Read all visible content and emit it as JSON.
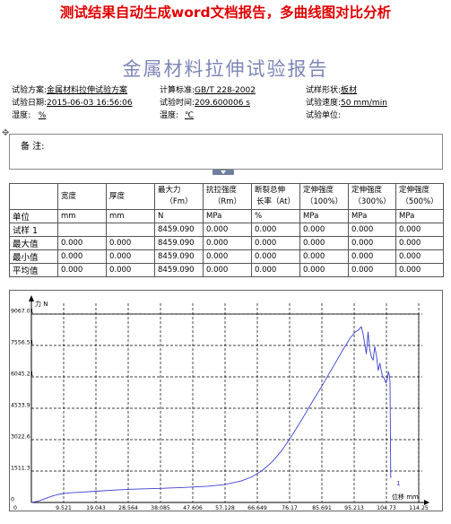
{
  "banner": "测试结果自动生成word文档报告，多曲线图对比分析",
  "report_title": "金属材料拉伸试验报告",
  "info": {
    "row1": [
      {
        "label": "试验方案:",
        "value": "金属材料拉伸试验方案"
      },
      {
        "label": "计算标准:",
        "value": "GB/T 228-2002"
      },
      {
        "label": "试样形状:",
        "value": "板材"
      }
    ],
    "row2": [
      {
        "label": "试验日期:",
        "value": "2015-06-03 16:56:06"
      },
      {
        "label": "试验时间:",
        "value": "209.600006 s"
      },
      {
        "label": "试验速度:",
        "value": "50 mm/min"
      }
    ],
    "row3": [
      {
        "label": "湿度:",
        "value": "%"
      },
      {
        "label": "温度:",
        "value": "℃"
      },
      {
        "label": "试验单位:",
        "value": ""
      }
    ]
  },
  "remark_label": "备  注:",
  "table": {
    "headers": [
      "",
      "宽度",
      "厚度",
      "最大力\n（Fm）",
      "抗拉强度\n（Rm）",
      "断裂总伸\n长率（At）",
      "定伸强度\n（100%）",
      "定伸强度\n（300%）",
      "定伸强度\n（500%）"
    ],
    "rows": [
      [
        "单位",
        "mm",
        "mm",
        "N",
        "MPa",
        "%",
        "MPa",
        "MPa",
        "MPa"
      ],
      [
        "试样 1",
        "",
        "",
        "8459.090",
        "0.000",
        "0.000",
        "0.000",
        "0.000",
        "0.000"
      ],
      [
        "最大值",
        "0.000",
        "0.000",
        "8459.090",
        "0.000",
        "0.000",
        "0.000",
        "0.000",
        "0.000"
      ],
      [
        "最小值",
        "0.000",
        "0.000",
        "8459.090",
        "0.000",
        "0.000",
        "0.000",
        "0.000",
        "0.000"
      ],
      [
        "平均值",
        "0.000",
        "0.000",
        "8459.090",
        "0.000",
        "0.000",
        "0.000",
        "0.000",
        "0.000"
      ]
    ]
  },
  "chart_data": {
    "type": "line",
    "ylabel": "力 N",
    "xlabel": "位移 mm",
    "xlim": [
      0,
      114.25
    ],
    "ylim": [
      0,
      9067.01
    ],
    "x_ticks": [
      "0",
      "9.521",
      "19.043",
      "28.564",
      "38.085",
      "47.606",
      "57.128",
      "66.649",
      "76.17",
      "85.691",
      "95.213",
      "104.73",
      "114.25"
    ],
    "y_ticks": [
      "0",
      "1511.3",
      "3022.6",
      "4533.9",
      "6045.21",
      "7556.51",
      "9067.01"
    ],
    "grid": true,
    "series": [
      {
        "annotation": "1",
        "color": "#3a3fcf",
        "x": [
          0,
          2,
          4,
          6,
          8,
          10,
          12,
          15,
          19,
          25,
          30,
          38,
          45,
          52,
          57,
          62,
          65,
          68,
          71,
          74,
          77,
          80,
          83,
          86,
          89,
          92,
          94,
          95.5,
          96.5,
          97.3,
          97.8,
          98.3,
          98.8,
          99.3,
          99.8,
          100.3,
          100.8,
          101.3,
          101.8,
          102.3,
          102.8,
          103.2,
          103.6,
          104.0,
          104.3,
          104.6,
          105.0,
          105.3,
          105.6,
          105.8,
          106.0,
          106.1
        ],
        "y": [
          0,
          60,
          180,
          300,
          390,
          440,
          470,
          500,
          540,
          600,
          640,
          680,
          720,
          780,
          860,
          1040,
          1230,
          1530,
          1950,
          2530,
          3260,
          4050,
          4880,
          5690,
          6530,
          7380,
          7900,
          8200,
          8300,
          8459,
          8150,
          7650,
          7150,
          8200,
          7350,
          7000,
          6850,
          7500,
          7050,
          6350,
          6700,
          6350,
          6050,
          6000,
          5850,
          5750,
          5950,
          6300,
          6100,
          5800,
          1200,
          1250
        ]
      }
    ]
  }
}
